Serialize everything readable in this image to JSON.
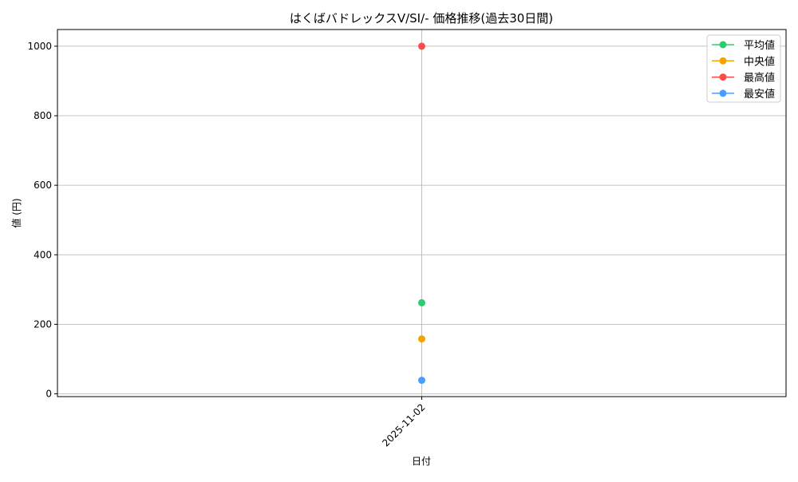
{
  "chart_data": {
    "type": "line",
    "title": "はくばバドレックスV/SI/- 価格推移(過去30日間)",
    "xlabel": "日付",
    "ylabel": "値 (円)",
    "x": [
      "2025-11-02"
    ],
    "ylim": [
      -8,
      1048
    ],
    "yticks": [
      0,
      200,
      400,
      600,
      800,
      1000
    ],
    "grid": true,
    "legend": "top-right",
    "series": [
      {
        "name": "平均値",
        "values": [
          262
        ],
        "color": "#2ecc71"
      },
      {
        "name": "中央値",
        "values": [
          158
        ],
        "color": "#f5a300"
      },
      {
        "name": "最高値",
        "values": [
          1000
        ],
        "color": "#ff4a4a"
      },
      {
        "name": "最安値",
        "values": [
          39
        ],
        "color": "#4a9eff"
      }
    ]
  }
}
